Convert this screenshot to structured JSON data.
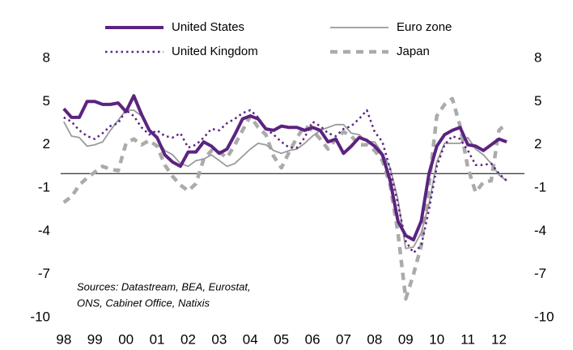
{
  "chart_data": {
    "type": "line",
    "x": [
      1998,
      1998.25,
      1998.5,
      1998.75,
      1999,
      1999.25,
      1999.5,
      1999.75,
      2000,
      2000.25,
      2000.5,
      2000.75,
      2001,
      2001.25,
      2001.5,
      2001.75,
      2002,
      2002.25,
      2002.5,
      2002.75,
      2003,
      2003.25,
      2003.5,
      2003.75,
      2004,
      2004.25,
      2004.5,
      2004.75,
      2005,
      2005.25,
      2005.5,
      2005.75,
      2006,
      2006.25,
      2006.5,
      2006.75,
      2007,
      2007.25,
      2007.5,
      2007.75,
      2008,
      2008.25,
      2008.5,
      2008.75,
      2009,
      2009.25,
      2009.5,
      2009.75,
      2010,
      2010.25,
      2010.5,
      2010.75,
      2011,
      2011.25,
      2011.5,
      2011.75,
      2012,
      2012.25
    ],
    "series": [
      {
        "name": "United States",
        "color": "#5b2480",
        "style": "solid",
        "width": 4,
        "values": [
          4.5,
          3.9,
          3.9,
          5.0,
          5.0,
          4.8,
          4.8,
          4.9,
          4.3,
          5.4,
          4.1,
          3.0,
          2.5,
          1.3,
          0.8,
          0.5,
          1.5,
          1.5,
          2.2,
          1.9,
          1.4,
          1.7,
          2.7,
          3.8,
          4.0,
          3.8,
          3.1,
          3.0,
          3.3,
          3.2,
          3.2,
          3.0,
          3.2,
          3.0,
          2.2,
          2.4,
          1.4,
          1.9,
          2.5,
          2.3,
          1.9,
          1.3,
          -0.5,
          -3.3,
          -4.3,
          -4.6,
          -3.3,
          0.0,
          1.9,
          2.7,
          3.0,
          3.2,
          2.0,
          1.9,
          1.6,
          2.0,
          2.4,
          2.2
        ]
      },
      {
        "name": "Euro zone",
        "color": "#9a9a9a",
        "style": "solid",
        "width": 1.8,
        "values": [
          3.6,
          2.6,
          2.5,
          1.9,
          2.0,
          2.2,
          3.0,
          3.7,
          4.4,
          4.4,
          4.0,
          3.0,
          2.4,
          1.6,
          1.3,
          0.7,
          0.5,
          0.9,
          1.0,
          1.3,
          0.9,
          0.5,
          0.7,
          1.2,
          1.7,
          2.1,
          2.0,
          1.6,
          1.4,
          1.6,
          1.7,
          2.1,
          2.6,
          3.0,
          3.2,
          3.4,
          3.4,
          2.8,
          2.7,
          2.2,
          2.2,
          1.4,
          0.4,
          -1.8,
          -5.2,
          -5.1,
          -4.1,
          -2.1,
          0.8,
          2.1,
          2.1,
          2.1,
          2.5,
          1.7,
          1.3,
          0.7,
          -0.1,
          -0.5
        ]
      },
      {
        "name": "United Kingdom",
        "color": "#5b2480",
        "style": "dotted",
        "width": 2.5,
        "values": [
          3.9,
          3.6,
          3.0,
          2.6,
          2.4,
          2.8,
          3.3,
          3.5,
          4.4,
          4.0,
          3.2,
          2.7,
          3.0,
          2.6,
          2.5,
          2.8,
          1.8,
          2.0,
          2.5,
          3.1,
          3.0,
          3.5,
          3.8,
          4.2,
          4.4,
          3.9,
          3.1,
          2.7,
          2.2,
          1.8,
          1.8,
          2.5,
          3.6,
          3.3,
          2.8,
          2.6,
          3.1,
          3.3,
          3.8,
          4.4,
          2.9,
          2.2,
          0.3,
          -2.1,
          -4.7,
          -5.5,
          -5.0,
          -2.5,
          0.5,
          2.0,
          2.6,
          2.4,
          1.6,
          0.6,
          0.6,
          0.7,
          0.0,
          -0.5
        ]
      },
      {
        "name": "Japan",
        "color": "#ababab",
        "style": "dashed",
        "width": 4.5,
        "values": [
          -2.0,
          -1.6,
          -0.8,
          -0.3,
          0.1,
          0.5,
          0.3,
          0.2,
          2.1,
          2.4,
          2.0,
          2.3,
          1.9,
          0.6,
          -0.2,
          -0.8,
          -1.2,
          -0.7,
          1.0,
          1.6,
          1.5,
          1.1,
          2.0,
          3.0,
          4.0,
          3.2,
          2.7,
          1.2,
          0.4,
          1.5,
          2.5,
          3.3,
          3.0,
          2.4,
          1.7,
          2.4,
          2.9,
          2.6,
          2.0,
          2.0,
          1.6,
          0.9,
          -0.8,
          -4.1,
          -8.7,
          -7.0,
          -5.0,
          -0.8,
          4.0,
          4.8,
          5.2,
          3.3,
          0.4,
          -1.3,
          -0.6,
          -0.5,
          3.0,
          3.5
        ]
      }
    ],
    "xlim": [
      1997.9,
      2012.82
    ],
    "xticks": [
      {
        "value": 1998,
        "label": "98"
      },
      {
        "value": 1999,
        "label": "99"
      },
      {
        "value": 2000,
        "label": "00"
      },
      {
        "value": 2001,
        "label": "01"
      },
      {
        "value": 2002,
        "label": "02"
      },
      {
        "value": 2003,
        "label": "03"
      },
      {
        "value": 2004,
        "label": "04"
      },
      {
        "value": 2005,
        "label": "05"
      },
      {
        "value": 2006,
        "label": "06"
      },
      {
        "value": 2007,
        "label": "07"
      },
      {
        "value": 2008,
        "label": "08"
      },
      {
        "value": 2009,
        "label": "09"
      },
      {
        "value": 2010,
        "label": "10"
      },
      {
        "value": 2011,
        "label": "11"
      },
      {
        "value": 2012,
        "label": "12"
      }
    ],
    "ylim": [
      -10,
      8
    ],
    "yticks": [
      8,
      5,
      2,
      -1,
      -4,
      -7,
      -10
    ],
    "y2lim": [
      -10,
      8
    ],
    "y2ticks": [
      8,
      5,
      2,
      -1,
      -4,
      -7,
      -10
    ],
    "annotations": [
      "Sources: Datastream, BEA, Eurostat,",
      "ONS, Cabinet Office, Natixis"
    ]
  }
}
